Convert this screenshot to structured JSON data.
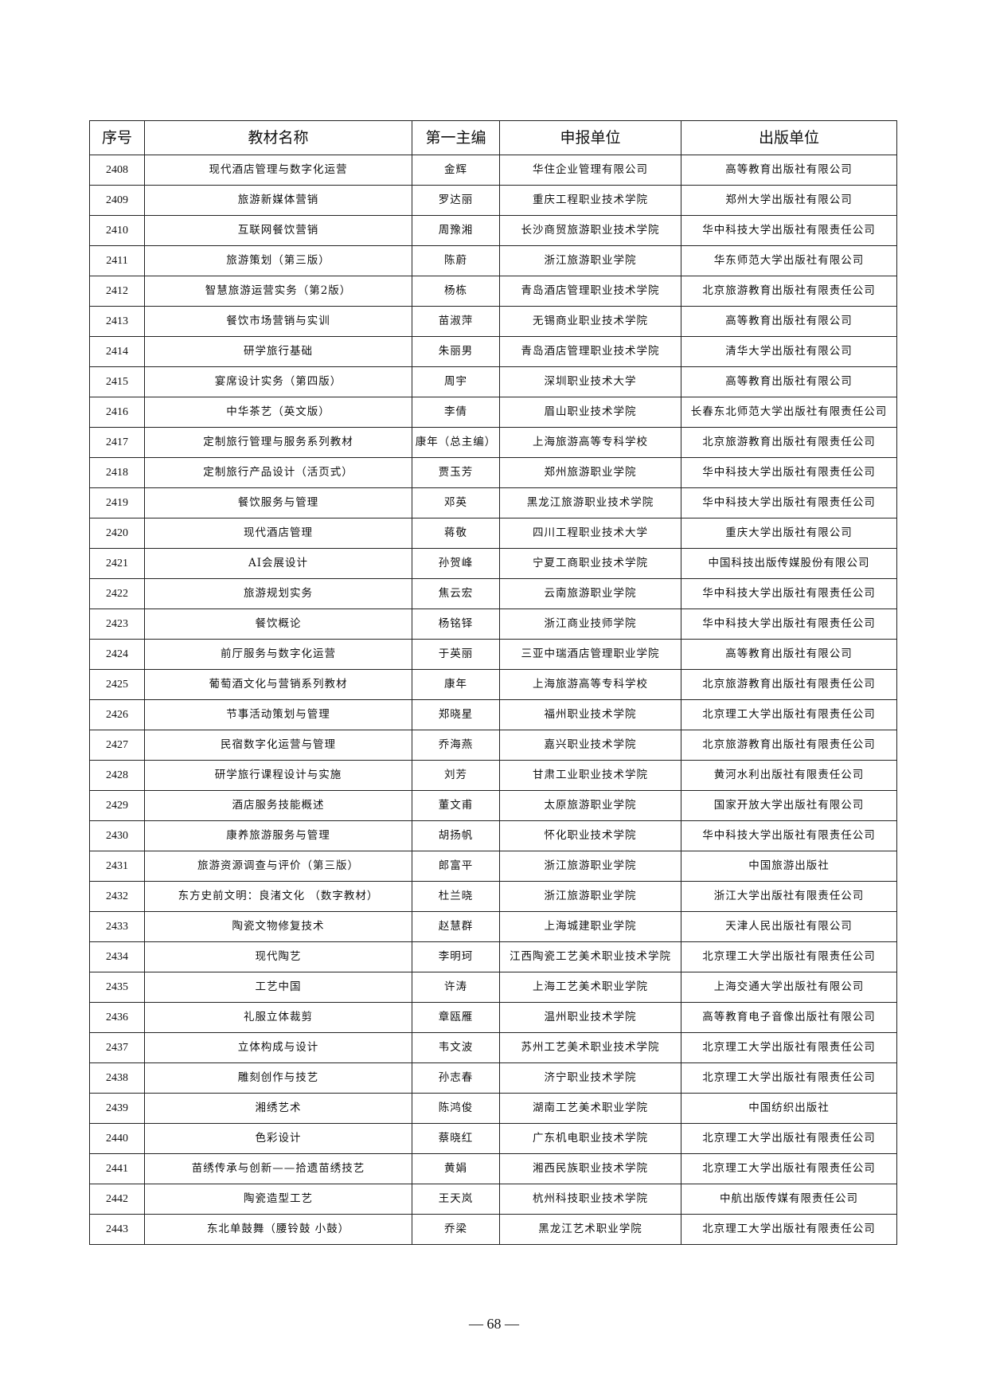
{
  "table": {
    "headers": [
      "序号",
      "教材名称",
      "第一主编",
      "申报单位",
      "出版单位"
    ],
    "rows": [
      [
        "2408",
        "现代酒店管理与数字化运营",
        "金辉",
        "华住企业管理有限公司",
        "高等教育出版社有限公司"
      ],
      [
        "2409",
        "旅游新媒体营销",
        "罗达丽",
        "重庆工程职业技术学院",
        "郑州大学出版社有限公司"
      ],
      [
        "2410",
        "互联网餐饮营销",
        "周豫湘",
        "长沙商贸旅游职业技术学院",
        "华中科技大学出版社有限责任公司"
      ],
      [
        "2411",
        "旅游策划（第三版）",
        "陈蔚",
        "浙江旅游职业学院",
        "华东师范大学出版社有限公司"
      ],
      [
        "2412",
        "智慧旅游运营实务（第2版）",
        "杨栋",
        "青岛酒店管理职业技术学院",
        "北京旅游教育出版社有限责任公司"
      ],
      [
        "2413",
        "餐饮市场营销与实训",
        "苗淑萍",
        "无锡商业职业技术学院",
        "高等教育出版社有限公司"
      ],
      [
        "2414",
        "研学旅行基础",
        "朱丽男",
        "青岛酒店管理职业技术学院",
        "清华大学出版社有限公司"
      ],
      [
        "2415",
        "宴席设计实务（第四版）",
        "周宇",
        "深圳职业技术大学",
        "高等教育出版社有限公司"
      ],
      [
        "2416",
        "中华茶艺（英文版）",
        "李倩",
        "眉山职业技术学院",
        "长春东北师范大学出版社有限责任公司"
      ],
      [
        "2417",
        "定制旅行管理与服务系列教材",
        "康年（总主编）",
        "上海旅游高等专科学校",
        "北京旅游教育出版社有限责任公司"
      ],
      [
        "2418",
        "定制旅行产品设计（活页式）",
        "贾玉芳",
        "郑州旅游职业学院",
        "华中科技大学出版社有限责任公司"
      ],
      [
        "2419",
        "餐饮服务与管理",
        "邓英",
        "黑龙江旅游职业技术学院",
        "华中科技大学出版社有限责任公司"
      ],
      [
        "2420",
        "现代酒店管理",
        "蒋敬",
        "四川工程职业技术大学",
        "重庆大学出版社有限公司"
      ],
      [
        "2421",
        "AI会展设计",
        "孙贺峰",
        "宁夏工商职业技术学院",
        "中国科技出版传媒股份有限公司"
      ],
      [
        "2422",
        "旅游规划实务",
        "焦云宏",
        "云南旅游职业学院",
        "华中科技大学出版社有限责任公司"
      ],
      [
        "2423",
        "餐饮概论",
        "杨铭铎",
        "浙江商业技师学院",
        "华中科技大学出版社有限责任公司"
      ],
      [
        "2424",
        "前厅服务与数字化运营",
        "于英丽",
        "三亚中瑞酒店管理职业学院",
        "高等教育出版社有限公司"
      ],
      [
        "2425",
        "葡萄酒文化与营销系列教材",
        "康年",
        "上海旅游高等专科学校",
        "北京旅游教育出版社有限责任公司"
      ],
      [
        "2426",
        "节事活动策划与管理",
        "郑晓星",
        "福州职业技术学院",
        "北京理工大学出版社有限责任公司"
      ],
      [
        "2427",
        "民宿数字化运营与管理",
        "乔海燕",
        "嘉兴职业技术学院",
        "北京旅游教育出版社有限责任公司"
      ],
      [
        "2428",
        "研学旅行课程设计与实施",
        "刘芳",
        "甘肃工业职业技术学院",
        "黄河水利出版社有限责任公司"
      ],
      [
        "2429",
        "酒店服务技能概述",
        "董文甫",
        "太原旅游职业学院",
        "国家开放大学出版社有限公司"
      ],
      [
        "2430",
        "康养旅游服务与管理",
        "胡扬帆",
        "怀化职业技术学院",
        "华中科技大学出版社有限责任公司"
      ],
      [
        "2431",
        "旅游资源调查与评价（第三版）",
        "郎富平",
        "浙江旅游职业学院",
        "中国旅游出版社"
      ],
      [
        "2432",
        "东方史前文明：良渚文化 （数字教材）",
        "杜兰晓",
        "浙江旅游职业学院",
        "浙江大学出版社有限责任公司"
      ],
      [
        "2433",
        "陶瓷文物修复技术",
        "赵慧群",
        "上海城建职业学院",
        "天津人民出版社有限公司"
      ],
      [
        "2434",
        "现代陶艺",
        "李明珂",
        "江西陶瓷工艺美术职业技术学院",
        "北京理工大学出版社有限责任公司"
      ],
      [
        "2435",
        "工艺中国",
        "许涛",
        "上海工艺美术职业学院",
        "上海交通大学出版社有限公司"
      ],
      [
        "2436",
        "礼服立体裁剪",
        "章瓯雁",
        "温州职业技术学院",
        "高等教育电子音像出版社有限公司"
      ],
      [
        "2437",
        "立体构成与设计",
        "韦文波",
        "苏州工艺美术职业技术学院",
        "北京理工大学出版社有限责任公司"
      ],
      [
        "2438",
        "雕刻创作与技艺",
        "孙志春",
        "济宁职业技术学院",
        "北京理工大学出版社有限责任公司"
      ],
      [
        "2439",
        "湘绣艺术",
        "陈鸿俊",
        "湖南工艺美术职业学院",
        "中国纺织出版社"
      ],
      [
        "2440",
        "色彩设计",
        "蔡晓红",
        "广东机电职业技术学院",
        "北京理工大学出版社有限责任公司"
      ],
      [
        "2441",
        "苗绣传承与创新——拾遗苗绣技艺",
        "黄娟",
        "湘西民族职业技术学院",
        "北京理工大学出版社有限责任公司"
      ],
      [
        "2442",
        "陶瓷造型工艺",
        "王天岚",
        "杭州科技职业技术学院",
        "中航出版传媒有限责任公司"
      ],
      [
        "2443",
        "东北单鼓舞（腰铃鼓 小鼓）",
        "乔梁",
        "黑龙江艺术职业学院",
        "北京理工大学出版社有限责任公司"
      ]
    ]
  },
  "footer": {
    "page_number": "— 68 —"
  }
}
